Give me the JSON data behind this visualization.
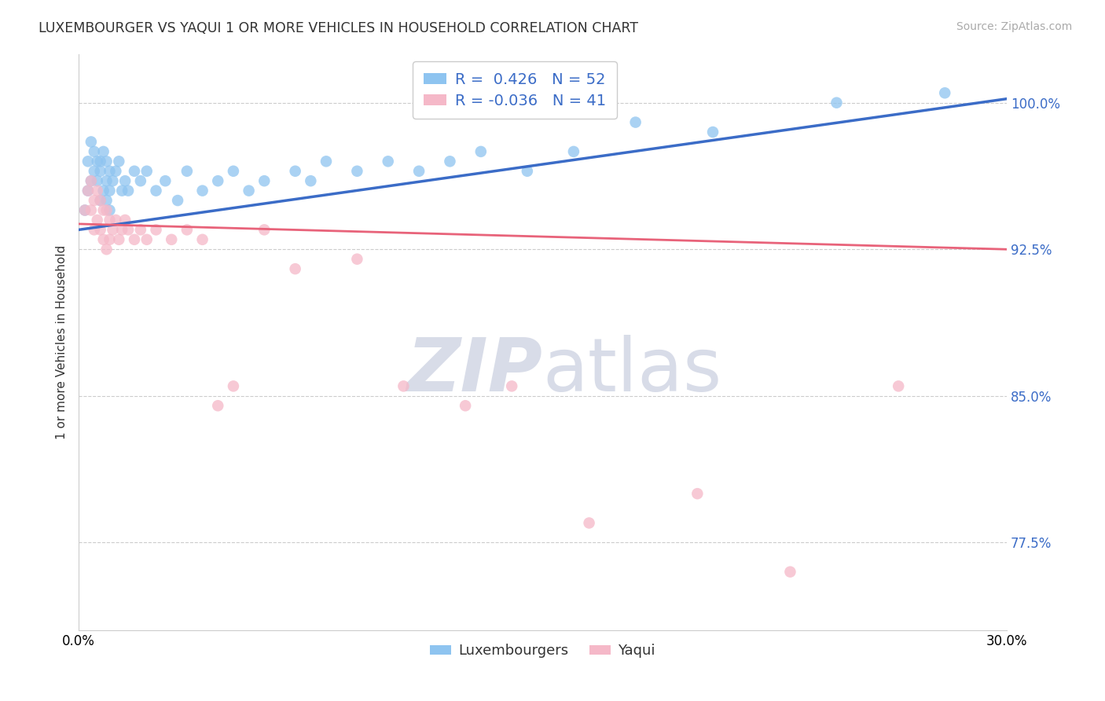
{
  "title": "LUXEMBOURGER VS YAQUI 1 OR MORE VEHICLES IN HOUSEHOLD CORRELATION CHART",
  "source_text": "Source: ZipAtlas.com",
  "ylabel": "1 or more Vehicles in Household",
  "xlim": [
    0.0,
    30.0
  ],
  "ylim": [
    73.0,
    102.5
  ],
  "xticks": [
    0.0,
    5.0,
    10.0,
    15.0,
    20.0,
    25.0,
    30.0
  ],
  "xticklabels": [
    "0.0%",
    "",
    "",
    "",
    "",
    "",
    "30.0%"
  ],
  "ytick_positions": [
    77.5,
    85.0,
    92.5,
    100.0
  ],
  "ytick_labels": [
    "77.5%",
    "85.0%",
    "92.5%",
    "100.0%"
  ],
  "blue_R": 0.426,
  "blue_N": 52,
  "pink_R": -0.036,
  "pink_N": 41,
  "blue_color": "#8EC4F0",
  "pink_color": "#F5B8C8",
  "blue_line_color": "#3B6CC7",
  "pink_line_color": "#E8637A",
  "grid_color": "#CCCCCC",
  "watermark_color": "#D8DCE8",
  "legend_label_blue": "Luxembourgers",
  "legend_label_pink": "Yaqui",
  "blue_x": [
    0.2,
    0.3,
    0.3,
    0.4,
    0.4,
    0.5,
    0.5,
    0.6,
    0.6,
    0.7,
    0.7,
    0.7,
    0.8,
    0.8,
    0.9,
    0.9,
    0.9,
    1.0,
    1.0,
    1.0,
    1.1,
    1.2,
    1.3,
    1.4,
    1.5,
    1.6,
    1.8,
    2.0,
    2.2,
    2.5,
    2.8,
    3.2,
    3.5,
    4.0,
    4.5,
    5.0,
    5.5,
    6.0,
    7.0,
    7.5,
    8.0,
    9.0,
    10.0,
    11.0,
    12.0,
    13.0,
    14.5,
    16.0,
    18.0,
    20.5,
    24.5,
    28.0
  ],
  "blue_y": [
    94.5,
    95.5,
    97.0,
    96.0,
    98.0,
    97.5,
    96.5,
    97.0,
    96.0,
    97.0,
    96.5,
    95.0,
    97.5,
    95.5,
    96.0,
    97.0,
    95.0,
    96.5,
    95.5,
    94.5,
    96.0,
    96.5,
    97.0,
    95.5,
    96.0,
    95.5,
    96.5,
    96.0,
    96.5,
    95.5,
    96.0,
    95.0,
    96.5,
    95.5,
    96.0,
    96.5,
    95.5,
    96.0,
    96.5,
    96.0,
    97.0,
    96.5,
    97.0,
    96.5,
    97.0,
    97.5,
    96.5,
    97.5,
    99.0,
    98.5,
    100.0,
    100.5
  ],
  "pink_x": [
    0.2,
    0.3,
    0.4,
    0.4,
    0.5,
    0.5,
    0.6,
    0.6,
    0.7,
    0.7,
    0.8,
    0.8,
    0.9,
    0.9,
    1.0,
    1.0,
    1.1,
    1.2,
    1.3,
    1.4,
    1.5,
    1.6,
    1.8,
    2.0,
    2.2,
    2.5,
    3.0,
    3.5,
    4.0,
    4.5,
    5.0,
    6.0,
    7.0,
    9.0,
    10.5,
    12.5,
    14.0,
    16.5,
    20.0,
    23.0,
    26.5
  ],
  "pink_y": [
    94.5,
    95.5,
    96.0,
    94.5,
    95.0,
    93.5,
    95.5,
    94.0,
    95.0,
    93.5,
    94.5,
    93.0,
    94.5,
    92.5,
    94.0,
    93.0,
    93.5,
    94.0,
    93.0,
    93.5,
    94.0,
    93.5,
    93.0,
    93.5,
    93.0,
    93.5,
    93.0,
    93.5,
    93.0,
    84.5,
    85.5,
    93.5,
    91.5,
    92.0,
    85.5,
    84.5,
    85.5,
    78.5,
    80.0,
    76.0,
    85.5
  ],
  "blue_trendline_y": [
    93.5,
    100.2
  ],
  "pink_trendline_y": [
    93.8,
    92.5
  ]
}
